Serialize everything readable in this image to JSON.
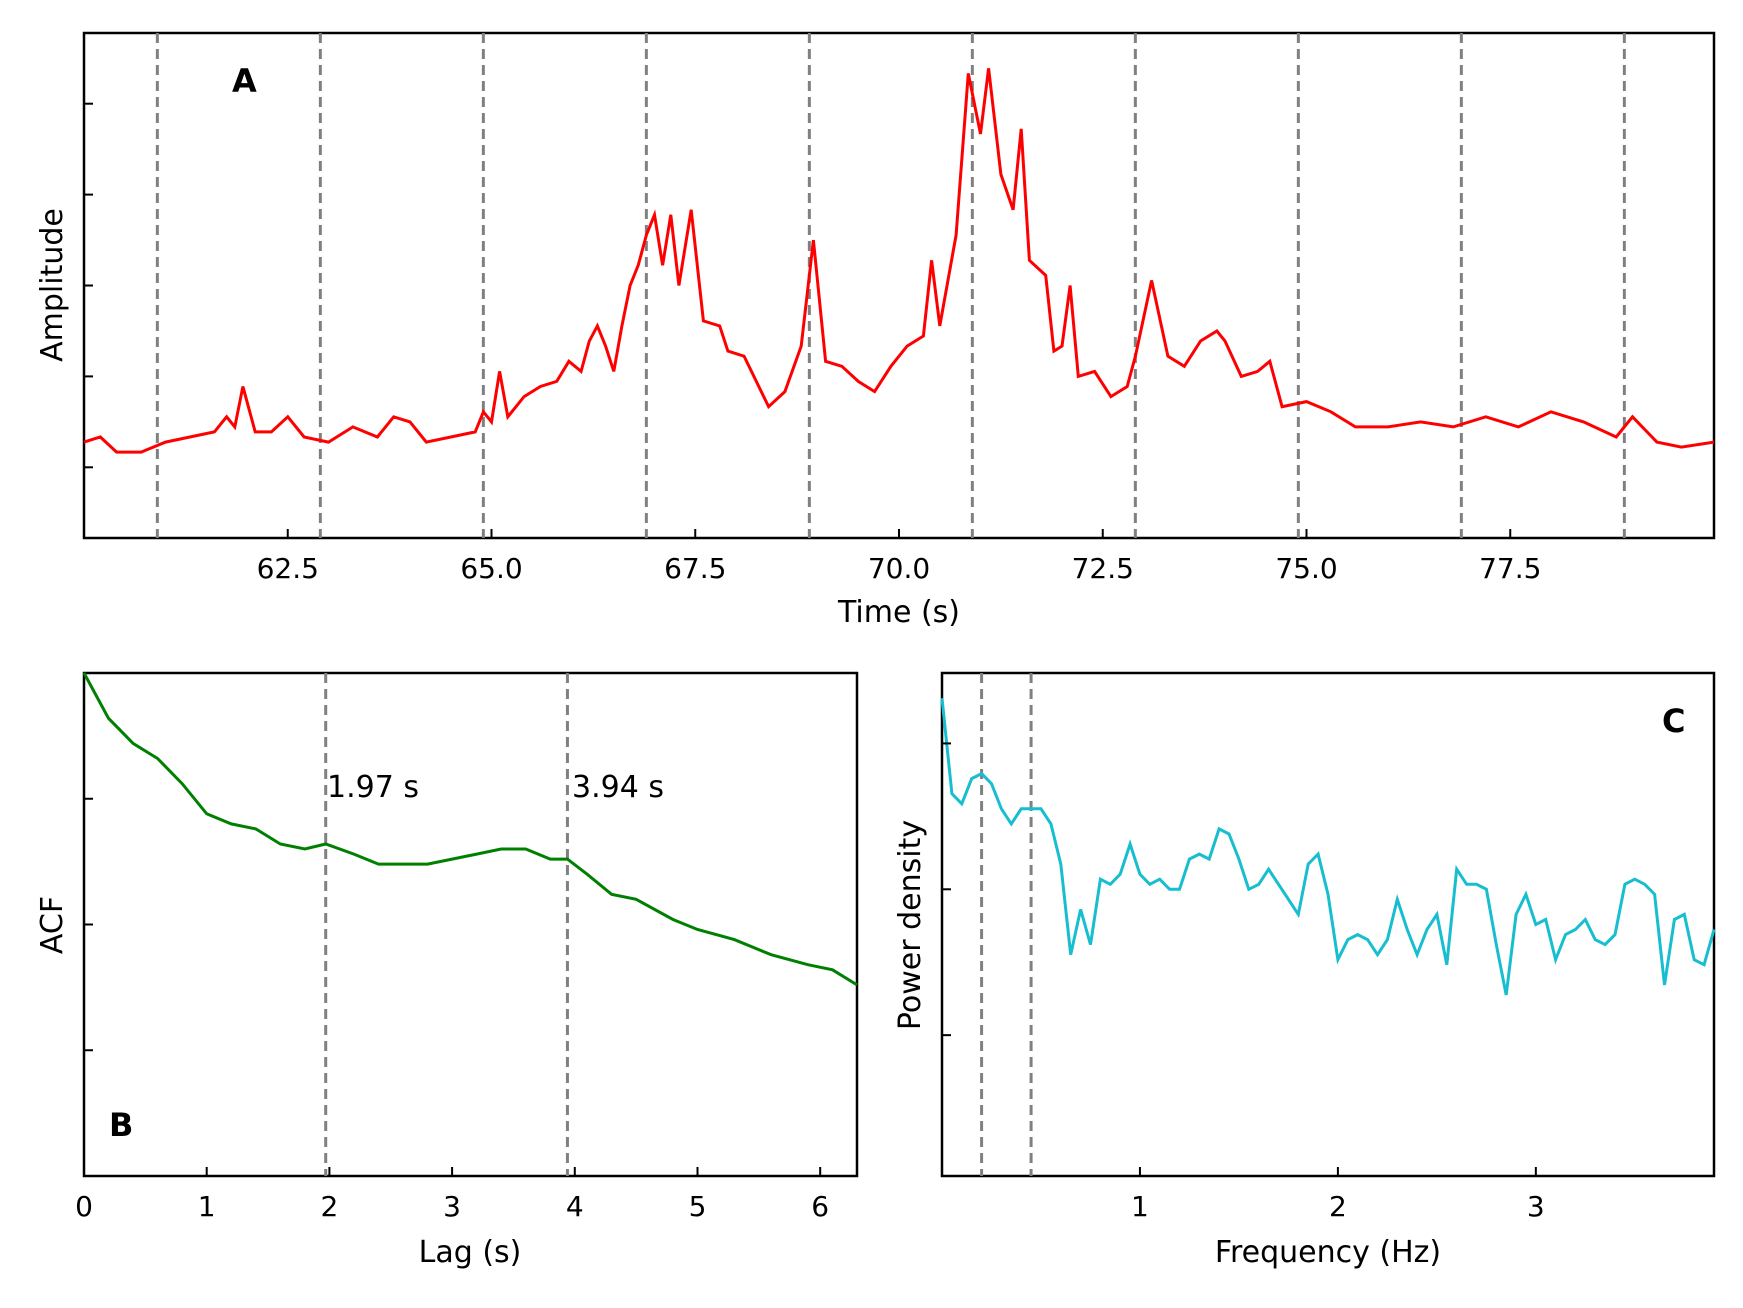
{
  "chart_data": [
    {
      "panel": "A",
      "type": "line",
      "xlabel": "Time (s)",
      "ylabel": "Amplitude",
      "xlim": [
        60.0,
        80.0
      ],
      "ylim": [
        0.0,
        1.0
      ],
      "x_ticks": [
        62.5,
        65.0,
        67.5,
        70.0,
        72.5,
        75.0,
        77.5
      ],
      "x_tick_labels": [
        "62.5",
        "65.0",
        "67.5",
        "70.0",
        "72.5",
        "75.0",
        "77.5"
      ],
      "y_ticks_unlabeled": [
        0.14,
        0.32,
        0.5,
        0.68,
        0.86
      ],
      "vlines": [
        60.9,
        62.9,
        64.9,
        66.9,
        68.9,
        70.9,
        72.9,
        74.9,
        76.9,
        78.9
      ],
      "line_color": "#ff0000",
      "series_points": [
        [
          60.0,
          0.19
        ],
        [
          60.2,
          0.2
        ],
        [
          60.4,
          0.17
        ],
        [
          60.7,
          0.17
        ],
        [
          61.0,
          0.19
        ],
        [
          61.3,
          0.2
        ],
        [
          61.6,
          0.21
        ],
        [
          61.75,
          0.24
        ],
        [
          61.85,
          0.22
        ],
        [
          61.95,
          0.3
        ],
        [
          62.1,
          0.21
        ],
        [
          62.3,
          0.21
        ],
        [
          62.5,
          0.24
        ],
        [
          62.7,
          0.2
        ],
        [
          63.0,
          0.19
        ],
        [
          63.3,
          0.22
        ],
        [
          63.6,
          0.2
        ],
        [
          63.8,
          0.24
        ],
        [
          64.0,
          0.23
        ],
        [
          64.2,
          0.19
        ],
        [
          64.5,
          0.2
        ],
        [
          64.8,
          0.21
        ],
        [
          64.9,
          0.25
        ],
        [
          65.0,
          0.23
        ],
        [
          65.1,
          0.33
        ],
        [
          65.2,
          0.24
        ],
        [
          65.4,
          0.28
        ],
        [
          65.6,
          0.3
        ],
        [
          65.8,
          0.31
        ],
        [
          65.95,
          0.35
        ],
        [
          66.1,
          0.33
        ],
        [
          66.2,
          0.39
        ],
        [
          66.3,
          0.42
        ],
        [
          66.4,
          0.38
        ],
        [
          66.5,
          0.33
        ],
        [
          66.6,
          0.42
        ],
        [
          66.7,
          0.5
        ],
        [
          66.8,
          0.54
        ],
        [
          66.9,
          0.6
        ],
        [
          67.0,
          0.64
        ],
        [
          67.1,
          0.54
        ],
        [
          67.2,
          0.64
        ],
        [
          67.3,
          0.5
        ],
        [
          67.45,
          0.65
        ],
        [
          67.6,
          0.43
        ],
        [
          67.8,
          0.42
        ],
        [
          67.9,
          0.37
        ],
        [
          68.1,
          0.36
        ],
        [
          68.4,
          0.26
        ],
        [
          68.6,
          0.29
        ],
        [
          68.8,
          0.38
        ],
        [
          68.95,
          0.59
        ],
        [
          69.1,
          0.35
        ],
        [
          69.3,
          0.34
        ],
        [
          69.5,
          0.31
        ],
        [
          69.7,
          0.29
        ],
        [
          69.9,
          0.34
        ],
        [
          70.1,
          0.38
        ],
        [
          70.3,
          0.4
        ],
        [
          70.4,
          0.55
        ],
        [
          70.5,
          0.42
        ],
        [
          70.7,
          0.6
        ],
        [
          70.85,
          0.92
        ],
        [
          71.0,
          0.8
        ],
        [
          71.1,
          0.93
        ],
        [
          71.25,
          0.72
        ],
        [
          71.4,
          0.65
        ],
        [
          71.5,
          0.81
        ],
        [
          71.6,
          0.55
        ],
        [
          71.8,
          0.52
        ],
        [
          71.9,
          0.37
        ],
        [
          72.0,
          0.38
        ],
        [
          72.1,
          0.5
        ],
        [
          72.2,
          0.32
        ],
        [
          72.4,
          0.33
        ],
        [
          72.6,
          0.28
        ],
        [
          72.8,
          0.3
        ],
        [
          72.9,
          0.36
        ],
        [
          73.1,
          0.51
        ],
        [
          73.3,
          0.36
        ],
        [
          73.5,
          0.34
        ],
        [
          73.7,
          0.39
        ],
        [
          73.9,
          0.41
        ],
        [
          74.0,
          0.39
        ],
        [
          74.2,
          0.32
        ],
        [
          74.4,
          0.33
        ],
        [
          74.55,
          0.35
        ],
        [
          74.7,
          0.26
        ],
        [
          75.0,
          0.27
        ],
        [
          75.3,
          0.25
        ],
        [
          75.6,
          0.22
        ],
        [
          76.0,
          0.22
        ],
        [
          76.4,
          0.23
        ],
        [
          76.8,
          0.22
        ],
        [
          77.2,
          0.24
        ],
        [
          77.6,
          0.22
        ],
        [
          78.0,
          0.25
        ],
        [
          78.4,
          0.23
        ],
        [
          78.8,
          0.2
        ],
        [
          79.0,
          0.24
        ],
        [
          79.3,
          0.19
        ],
        [
          79.6,
          0.18
        ],
        [
          80.0,
          0.19
        ]
      ],
      "style": {
        "vline_color": "#808080"
      }
    },
    {
      "panel": "B",
      "type": "line",
      "xlabel": "Lag (s)",
      "ylabel": "ACF",
      "xlim": [
        0,
        6.3
      ],
      "ylim": [
        0.0,
        1.0
      ],
      "x_ticks": [
        0,
        1,
        2,
        3,
        4,
        5,
        6
      ],
      "x_tick_labels": [
        "0",
        "1",
        "2",
        "3",
        "4",
        "5",
        "6"
      ],
      "y_ticks_unlabeled": [
        0.25,
        0.5,
        0.75
      ],
      "vlines": [
        1.97,
        3.94
      ],
      "annotations": [
        "1.97 s",
        "3.94 s"
      ],
      "line_color": "#008000",
      "series_points": [
        [
          0.0,
          1.0
        ],
        [
          0.2,
          0.91
        ],
        [
          0.4,
          0.86
        ],
        [
          0.6,
          0.83
        ],
        [
          0.8,
          0.78
        ],
        [
          1.0,
          0.72
        ],
        [
          1.2,
          0.7
        ],
        [
          1.4,
          0.69
        ],
        [
          1.6,
          0.66
        ],
        [
          1.8,
          0.65
        ],
        [
          1.97,
          0.66
        ],
        [
          2.2,
          0.64
        ],
        [
          2.4,
          0.62
        ],
        [
          2.6,
          0.62
        ],
        [
          2.8,
          0.62
        ],
        [
          3.0,
          0.63
        ],
        [
          3.2,
          0.64
        ],
        [
          3.4,
          0.65
        ],
        [
          3.6,
          0.65
        ],
        [
          3.8,
          0.63
        ],
        [
          3.94,
          0.63
        ],
        [
          4.1,
          0.6
        ],
        [
          4.3,
          0.56
        ],
        [
          4.5,
          0.55
        ],
        [
          4.8,
          0.51
        ],
        [
          5.0,
          0.49
        ],
        [
          5.3,
          0.47
        ],
        [
          5.6,
          0.44
        ],
        [
          5.9,
          0.42
        ],
        [
          6.1,
          0.41
        ],
        [
          6.3,
          0.38
        ]
      ],
      "style": {
        "vline_color": "#808080"
      }
    },
    {
      "panel": "C",
      "type": "line",
      "xlabel": "Frequency (Hz)",
      "ylabel": "Power density",
      "xlim": [
        0.0,
        3.9
      ],
      "ylim": [
        0.0,
        1.0
      ],
      "x_ticks": [
        1,
        2,
        3
      ],
      "x_tick_labels": [
        "1",
        "2",
        "3"
      ],
      "y_ticks_unlabeled": [
        0.28,
        0.57,
        0.86
      ],
      "vlines": [
        0.2,
        0.45
      ],
      "line_color": "#17becf",
      "series_points": [
        [
          0.0,
          0.95
        ],
        [
          0.05,
          0.76
        ],
        [
          0.1,
          0.74
        ],
        [
          0.15,
          0.79
        ],
        [
          0.2,
          0.8
        ],
        [
          0.25,
          0.78
        ],
        [
          0.3,
          0.73
        ],
        [
          0.35,
          0.7
        ],
        [
          0.4,
          0.73
        ],
        [
          0.45,
          0.73
        ],
        [
          0.5,
          0.73
        ],
        [
          0.55,
          0.7
        ],
        [
          0.6,
          0.62
        ],
        [
          0.65,
          0.44
        ],
        [
          0.7,
          0.53
        ],
        [
          0.75,
          0.46
        ],
        [
          0.8,
          0.59
        ],
        [
          0.85,
          0.58
        ],
        [
          0.9,
          0.6
        ],
        [
          0.95,
          0.66
        ],
        [
          1.0,
          0.6
        ],
        [
          1.05,
          0.58
        ],
        [
          1.1,
          0.59
        ],
        [
          1.15,
          0.57
        ],
        [
          1.2,
          0.57
        ],
        [
          1.25,
          0.63
        ],
        [
          1.3,
          0.64
        ],
        [
          1.35,
          0.63
        ],
        [
          1.4,
          0.69
        ],
        [
          1.45,
          0.68
        ],
        [
          1.5,
          0.63
        ],
        [
          1.55,
          0.57
        ],
        [
          1.6,
          0.58
        ],
        [
          1.65,
          0.61
        ],
        [
          1.7,
          0.58
        ],
        [
          1.75,
          0.55
        ],
        [
          1.8,
          0.52
        ],
        [
          1.85,
          0.62
        ],
        [
          1.9,
          0.64
        ],
        [
          1.95,
          0.56
        ],
        [
          2.0,
          0.43
        ],
        [
          2.05,
          0.47
        ],
        [
          2.1,
          0.48
        ],
        [
          2.15,
          0.47
        ],
        [
          2.2,
          0.44
        ],
        [
          2.25,
          0.47
        ],
        [
          2.3,
          0.55
        ],
        [
          2.35,
          0.49
        ],
        [
          2.4,
          0.44
        ],
        [
          2.45,
          0.49
        ],
        [
          2.5,
          0.52
        ],
        [
          2.55,
          0.42
        ],
        [
          2.6,
          0.61
        ],
        [
          2.65,
          0.58
        ],
        [
          2.7,
          0.58
        ],
        [
          2.75,
          0.57
        ],
        [
          2.8,
          0.46
        ],
        [
          2.85,
          0.36
        ],
        [
          2.9,
          0.52
        ],
        [
          2.95,
          0.56
        ],
        [
          3.0,
          0.5
        ],
        [
          3.05,
          0.51
        ],
        [
          3.1,
          0.43
        ],
        [
          3.15,
          0.48
        ],
        [
          3.2,
          0.49
        ],
        [
          3.25,
          0.51
        ],
        [
          3.3,
          0.47
        ],
        [
          3.35,
          0.46
        ],
        [
          3.4,
          0.48
        ],
        [
          3.45,
          0.58
        ],
        [
          3.5,
          0.59
        ],
        [
          3.55,
          0.58
        ],
        [
          3.6,
          0.56
        ],
        [
          3.65,
          0.38
        ],
        [
          3.7,
          0.51
        ],
        [
          3.75,
          0.52
        ],
        [
          3.8,
          0.43
        ],
        [
          3.85,
          0.42
        ],
        [
          3.9,
          0.49
        ]
      ],
      "style": {
        "vline_color": "#808080"
      }
    }
  ],
  "panels": {
    "a": {
      "letter": "A",
      "xlabel": "Time (s)",
      "ylabel": "Amplitude"
    },
    "b": {
      "letter": "B",
      "xlabel": "Lag (s)",
      "ylabel": "ACF",
      "annot1": "1.97 s",
      "annot2": "3.94 s"
    },
    "c": {
      "letter": "C",
      "xlabel": "Frequency (Hz)",
      "ylabel": "Power density"
    }
  }
}
